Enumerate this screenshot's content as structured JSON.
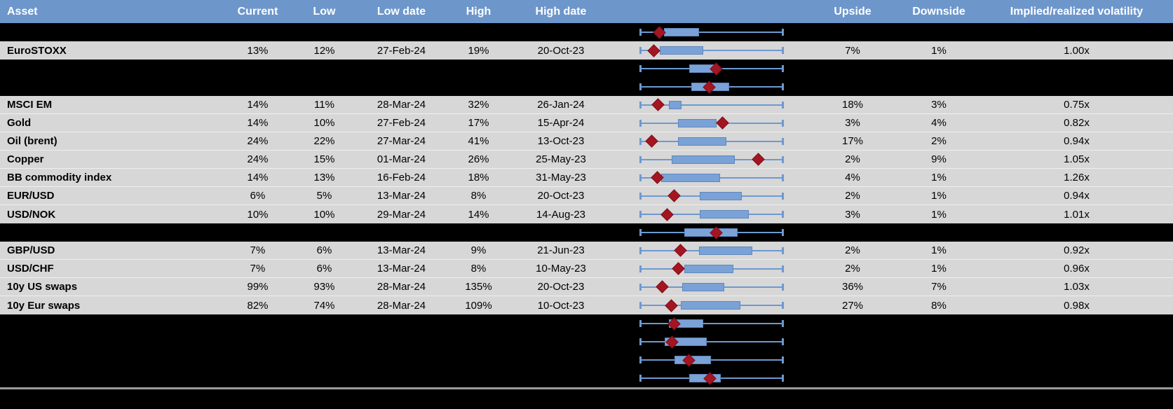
{
  "colors": {
    "header_bg": "#6D96CB",
    "header_text": "#FFFFFF",
    "data_row_bg": "#D7D7D7",
    "spacer_row_bg": "#000000",
    "whisker_blue": "#6E99D0",
    "box_fill_blue": "#7BA2D6",
    "marker_dark_red": "#A31621",
    "separator_gray": "#9B9B9B"
  },
  "header": {
    "columns": [
      {
        "key": "asset",
        "label": "Asset"
      },
      {
        "key": "current",
        "label": "Current"
      },
      {
        "key": "low",
        "label": "Low"
      },
      {
        "key": "low_date",
        "label": "Low date"
      },
      {
        "key": "high",
        "label": "High"
      },
      {
        "key": "high_date",
        "label": "High date"
      },
      {
        "key": "chart",
        "label": ""
      },
      {
        "key": "upside",
        "label": "Upside"
      },
      {
        "key": "downside",
        "label": "Downside"
      },
      {
        "key": "ratio",
        "label": "Implied/realized volatility"
      }
    ]
  },
  "chart_data": {
    "type": "table",
    "note": "Each row has an embedded horizontal box plot; whisker_min/whisker_max are the low/high whisker ends, box_low/box_high the blue box edges, marker the red diamond, all as fractions 0-1 of the whisker span.",
    "columns": [
      "Asset",
      "Current",
      "Low",
      "Low date",
      "High",
      "High date",
      "Upside",
      "Downside",
      "Implied/realized volatility"
    ]
  },
  "rows": [
    {
      "type": "spacer",
      "asset": "",
      "current": "",
      "low": "",
      "low_date": "",
      "high": "",
      "high_date": "",
      "upside": "",
      "downside": "",
      "ratio": "",
      "box": {
        "whisker_min": 0,
        "whisker_max": 1,
        "box_low": 0.167,
        "box_high": 0.412,
        "marker": 0.137
      }
    },
    {
      "type": "data",
      "asset": "EuroSTOXX",
      "current": "13%",
      "low": "12%",
      "low_date": "27-Feb-24",
      "high": "19%",
      "high_date": "20-Oct-23",
      "upside": "7%",
      "downside": "1%",
      "ratio": "1.00x",
      "box": {
        "whisker_min": 0,
        "whisker_max": 1,
        "box_low": 0.137,
        "box_high": 0.441,
        "marker": 0.098
      }
    },
    {
      "type": "spacer",
      "asset": "",
      "current": "",
      "low": "",
      "low_date": "",
      "high": "",
      "high_date": "",
      "upside": "",
      "downside": "",
      "ratio": "",
      "box": {
        "whisker_min": 0,
        "whisker_max": 1,
        "box_low": 0.343,
        "box_high": 0.539,
        "marker": 0.534
      }
    },
    {
      "type": "spacer",
      "asset": "",
      "current": "",
      "low": "",
      "low_date": "",
      "high": "",
      "high_date": "",
      "upside": "",
      "downside": "",
      "ratio": "",
      "box": {
        "whisker_min": 0,
        "whisker_max": 1,
        "box_low": 0.358,
        "box_high": 0.623,
        "marker": 0.485
      }
    },
    {
      "type": "data",
      "asset": "MSCI EM",
      "current": "14%",
      "low": "11%",
      "low_date": "28-Mar-24",
      "high": "32%",
      "high_date": "26-Jan-24",
      "upside": "18%",
      "downside": "3%",
      "ratio": "0.75x",
      "box": {
        "whisker_min": 0,
        "whisker_max": 1,
        "box_low": 0.2,
        "box_high": 0.29,
        "marker": 0.123
      }
    },
    {
      "type": "data",
      "asset": "Gold",
      "current": "14%",
      "low": "10%",
      "low_date": "27-Feb-24",
      "high": "17%",
      "high_date": "15-Apr-24",
      "upside": "3%",
      "downside": "4%",
      "ratio": "0.82x",
      "box": {
        "whisker_min": 0,
        "whisker_max": 1,
        "box_low": 0.264,
        "box_high": 0.532,
        "marker": 0.576
      }
    },
    {
      "type": "data",
      "asset": "Oil (brent)",
      "current": "24%",
      "low": "22%",
      "low_date": "27-Mar-24",
      "high": "41%",
      "high_date": "13-Oct-23",
      "upside": "17%",
      "downside": "2%",
      "ratio": "0.94x",
      "box": {
        "whisker_min": 0,
        "whisker_max": 1,
        "box_low": 0.265,
        "box_high": 0.602,
        "marker": 0.083
      }
    },
    {
      "type": "data",
      "asset": "Copper",
      "current": "24%",
      "low": "15%",
      "low_date": "01-Mar-24",
      "high": "26%",
      "high_date": "25-May-23",
      "upside": "2%",
      "downside": "9%",
      "ratio": "1.05x",
      "box": {
        "whisker_min": 0,
        "whisker_max": 1,
        "box_low": 0.22,
        "box_high": 0.662,
        "marker": 0.824
      }
    },
    {
      "type": "data",
      "asset": "BB commodity index",
      "current": "14%",
      "low": "13%",
      "low_date": "16-Feb-24",
      "high": "18%",
      "high_date": "31-May-23",
      "upside": "4%",
      "downside": "1%",
      "ratio": "1.26x",
      "box": {
        "whisker_min": 0,
        "whisker_max": 1,
        "box_low": 0.147,
        "box_high": 0.559,
        "marker": 0.118
      }
    },
    {
      "type": "data",
      "asset": "EUR/USD",
      "current": "6%",
      "low": "5%",
      "low_date": "13-Mar-24",
      "high": "8%",
      "high_date": "20-Oct-23",
      "upside": "2%",
      "downside": "1%",
      "ratio": "0.94x",
      "box": {
        "whisker_min": 0,
        "whisker_max": 1,
        "box_low": 0.417,
        "box_high": 0.711,
        "marker": 0.24
      }
    },
    {
      "type": "data",
      "asset": "USD/NOK",
      "current": "10%",
      "low": "10%",
      "low_date": "29-Mar-24",
      "high": "14%",
      "high_date": "14-Aug-23",
      "upside": "3%",
      "downside": "1%",
      "ratio": "1.01x",
      "box": {
        "whisker_min": 0,
        "whisker_max": 1,
        "box_low": 0.417,
        "box_high": 0.76,
        "marker": 0.191
      }
    },
    {
      "type": "spacer",
      "asset": "",
      "current": "",
      "low": "",
      "low_date": "",
      "high": "",
      "high_date": "",
      "upside": "",
      "downside": "",
      "ratio": "",
      "box": {
        "whisker_min": 0,
        "whisker_max": 1,
        "box_low": 0.309,
        "box_high": 0.681,
        "marker": 0.534
      }
    },
    {
      "type": "data",
      "asset": "GBP/USD",
      "current": "7%",
      "low": "6%",
      "low_date": "13-Mar-24",
      "high": "9%",
      "high_date": "21-Jun-23",
      "upside": "2%",
      "downside": "1%",
      "ratio": "0.92x",
      "box": {
        "whisker_min": 0,
        "whisker_max": 1,
        "box_low": 0.412,
        "box_high": 0.784,
        "marker": 0.284
      }
    },
    {
      "type": "data",
      "asset": "USD/CHF",
      "current": "7%",
      "low": "6%",
      "low_date": "13-Mar-24",
      "high": "8%",
      "high_date": "10-May-23",
      "upside": "2%",
      "downside": "1%",
      "ratio": "0.96x",
      "box": {
        "whisker_min": 0,
        "whisker_max": 1,
        "box_low": 0.309,
        "box_high": 0.652,
        "marker": 0.265
      }
    },
    {
      "type": "data",
      "asset": "10y US swaps",
      "current": "99%",
      "low": "93%",
      "low_date": "28-Mar-24",
      "high": "135%",
      "high_date": "20-Oct-23",
      "upside": "36%",
      "downside": "7%",
      "ratio": "1.03x",
      "box": {
        "whisker_min": 0,
        "whisker_max": 1,
        "box_low": 0.294,
        "box_high": 0.588,
        "marker": 0.152
      }
    },
    {
      "type": "data",
      "asset": "10y Eur swaps",
      "current": "82%",
      "low": "74%",
      "low_date": "28-Mar-24",
      "high": "109%",
      "high_date": "10-Oct-23",
      "upside": "27%",
      "downside": "8%",
      "ratio": "0.98x",
      "box": {
        "whisker_min": 0,
        "whisker_max": 1,
        "box_low": 0.284,
        "box_high": 0.701,
        "marker": 0.216
      }
    },
    {
      "type": "spacer",
      "asset": "",
      "current": "",
      "low": "",
      "low_date": "",
      "high": "",
      "high_date": "",
      "upside": "",
      "downside": "",
      "ratio": "",
      "box": {
        "whisker_min": 0,
        "whisker_max": 1,
        "box_low": 0.201,
        "box_high": 0.441,
        "marker": 0.24
      }
    },
    {
      "type": "spacer",
      "asset": "",
      "current": "",
      "low": "",
      "low_date": "",
      "high": "",
      "high_date": "",
      "upside": "",
      "downside": "",
      "ratio": "",
      "box": {
        "whisker_min": 0,
        "whisker_max": 1,
        "box_low": 0.172,
        "box_high": 0.466,
        "marker": 0.225
      }
    },
    {
      "type": "spacer",
      "asset": "",
      "current": "",
      "low": "",
      "low_date": "",
      "high": "",
      "high_date": "",
      "upside": "",
      "downside": "",
      "ratio": "",
      "box": {
        "whisker_min": 0,
        "whisker_max": 1,
        "box_low": 0.24,
        "box_high": 0.495,
        "marker": 0.343
      }
    },
    {
      "type": "spacer",
      "asset": "",
      "current": "",
      "low": "",
      "low_date": "",
      "high": "",
      "high_date": "",
      "upside": "",
      "downside": "",
      "ratio": "",
      "box": {
        "whisker_min": 0,
        "whisker_max": 1,
        "box_low": 0.343,
        "box_high": 0.564,
        "marker": 0.49
      }
    }
  ]
}
